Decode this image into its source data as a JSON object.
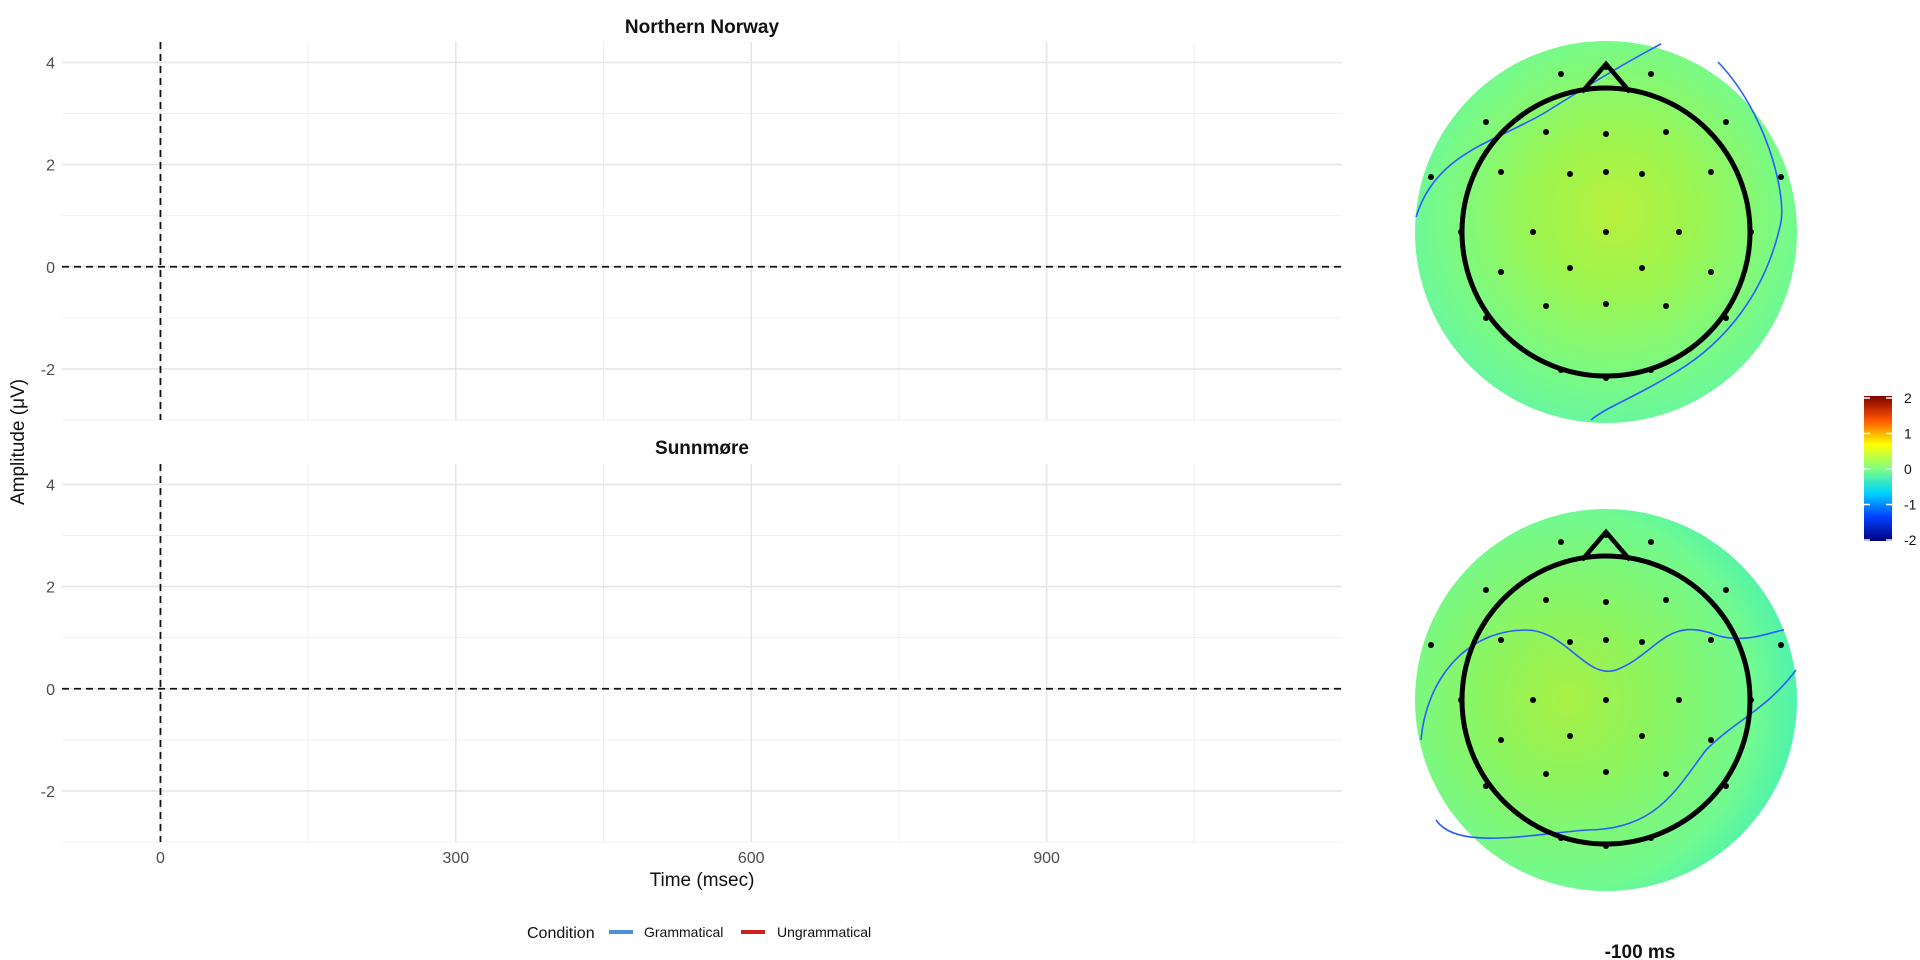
{
  "chart_data": {
    "type": "line",
    "panels": [
      {
        "title": "Northern Norway",
        "series": []
      },
      {
        "title": "Sunnmøre",
        "series": []
      }
    ],
    "xlabel": "Time (msec)",
    "ylabel": "Amplitude (μV)",
    "xlim": [
      -100,
      1200
    ],
    "ylim": [
      -3,
      4.4
    ],
    "x_ticks": [
      0,
      300,
      600,
      900
    ],
    "y_ticks": [
      -2,
      0,
      2,
      4
    ],
    "x_tick_labels": [
      "0",
      "300",
      "600",
      "900"
    ],
    "y_tick_labels": [
      "-2",
      "0",
      "2",
      "4"
    ],
    "reference_lines": {
      "x": 0,
      "y": 0,
      "style": "dashed"
    },
    "grid": true,
    "legend": {
      "title": "Condition",
      "position": "bottom",
      "entries": [
        {
          "label": "Grammatical",
          "color": "#4a90d9"
        },
        {
          "label": "Ungrammatical",
          "color": "#cc1f1a"
        }
      ]
    },
    "topomaps": {
      "time_label": "-100 ms",
      "colorscale": {
        "min": -2,
        "max": 2,
        "ticks": [
          "2",
          "1",
          "0",
          "-1",
          "-2"
        ],
        "colors": [
          "#00007f",
          "#0040ff",
          "#00d5ff",
          "#80ff80",
          "#ffff00",
          "#ff5500",
          "#7f0000"
        ]
      },
      "maps": [
        {
          "panel": "Northern Norway",
          "surface_colors": [
            "#b8f03c",
            "#9cf550",
            "#78fa88",
            "#62f5a8"
          ]
        },
        {
          "panel": "Sunnmøre",
          "surface_colors": [
            "#a8f045",
            "#8cf560",
            "#72fa90",
            "#3ff0b8"
          ]
        }
      ],
      "contour_color": "#2a5cff"
    }
  }
}
